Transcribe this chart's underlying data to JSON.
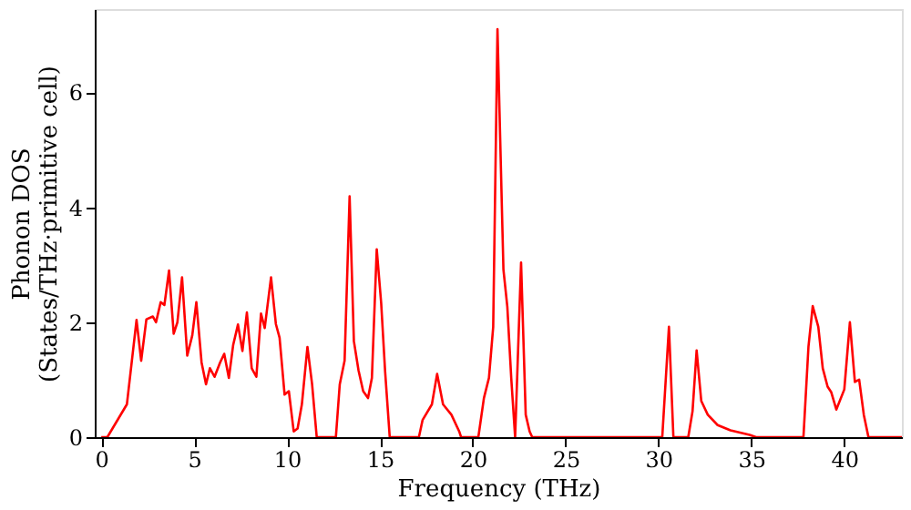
{
  "chart_data": {
    "type": "line",
    "xlabel": "Frequency (THz)",
    "ylabel": "Phonon DOS\n(States/THz·primitive cell)",
    "x": [
      0,
      0.33,
      1.38,
      1.9,
      2.15,
      2.43,
      2.78,
      2.95,
      3.2,
      3.4,
      3.65,
      3.9,
      4.1,
      4.35,
      4.63,
      4.9,
      5.12,
      5.4,
      5.64,
      5.85,
      6.1,
      6.4,
      6.62,
      6.87,
      7.1,
      7.36,
      7.6,
      7.84,
      8.1,
      8.35,
      8.6,
      8.8,
      9.14,
      9.4,
      9.6,
      9.87,
      10.1,
      10.36,
      10.57,
      10.8,
      11.1,
      11.35,
      11.6,
      12.63,
      12.84,
      13.1,
      13.37,
      13.6,
      13.85,
      14.1,
      14.36,
      14.57,
      14.83,
      15.07,
      15.28,
      15.53,
      17.1,
      17.3,
      17.8,
      18.08,
      18.4,
      18.85,
      19.27,
      19.37,
      20.3,
      20.6,
      20.87,
      21.1,
      21.33,
      21.65,
      21.86,
      22.07,
      22.28,
      22.6,
      22.85,
      23.06,
      23.2,
      30.2,
      30.56,
      30.8,
      31.6,
      31.83,
      32.05,
      32.3,
      32.65,
      33.18,
      33.87,
      34.9,
      35.25,
      37.8,
      38.07,
      38.3,
      38.6,
      38.84,
      39.1,
      39.3,
      39.57,
      40,
      40.3,
      40.57,
      40.8,
      41.05,
      41.3,
      43.1
    ],
    "series": [
      {
        "color": "#ff0000",
        "values": [
          0,
          0,
          0.57,
          2.04,
          1.33,
          2.05,
          2.1,
          2.0,
          2.35,
          2.3,
          2.9,
          1.8,
          2.0,
          2.78,
          1.42,
          1.77,
          2.35,
          1.3,
          0.92,
          1.2,
          1.05,
          1.3,
          1.45,
          1.03,
          1.6,
          1.96,
          1.5,
          2.17,
          1.2,
          1.05,
          2.15,
          1.9,
          2.78,
          1.97,
          1.73,
          0.74,
          0.8,
          0.1,
          0.15,
          0.57,
          1.57,
          0.92,
          0,
          0,
          0.92,
          1.33,
          4.19,
          1.67,
          1.16,
          0.8,
          0.68,
          1.03,
          3.27,
          2.33,
          1.15,
          0,
          0,
          0.3,
          0.57,
          1.1,
          0.57,
          0.39,
          0.1,
          0,
          0,
          0.68,
          1.03,
          1.92,
          7.1,
          2.92,
          2.27,
          1.03,
          0,
          3.04,
          0.39,
          0.1,
          0,
          0,
          1.92,
          0,
          0,
          0.45,
          1.51,
          0.63,
          0.39,
          0.21,
          0.12,
          0.04,
          0,
          0,
          1.57,
          2.28,
          1.92,
          1.2,
          0.88,
          0.78,
          0.48,
          0.83,
          2.0,
          0.96,
          1.0,
          0.39,
          0,
          0
        ]
      }
    ],
    "xlim": [
      -0.35,
      43.1
    ],
    "ylim": [
      0,
      7.45
    ],
    "xticks": [
      0,
      5,
      10,
      15,
      20,
      25,
      30,
      35,
      40
    ],
    "yticks": [
      0,
      2,
      4,
      6
    ],
    "grid": false,
    "line_style": "solid",
    "marker": "none"
  }
}
